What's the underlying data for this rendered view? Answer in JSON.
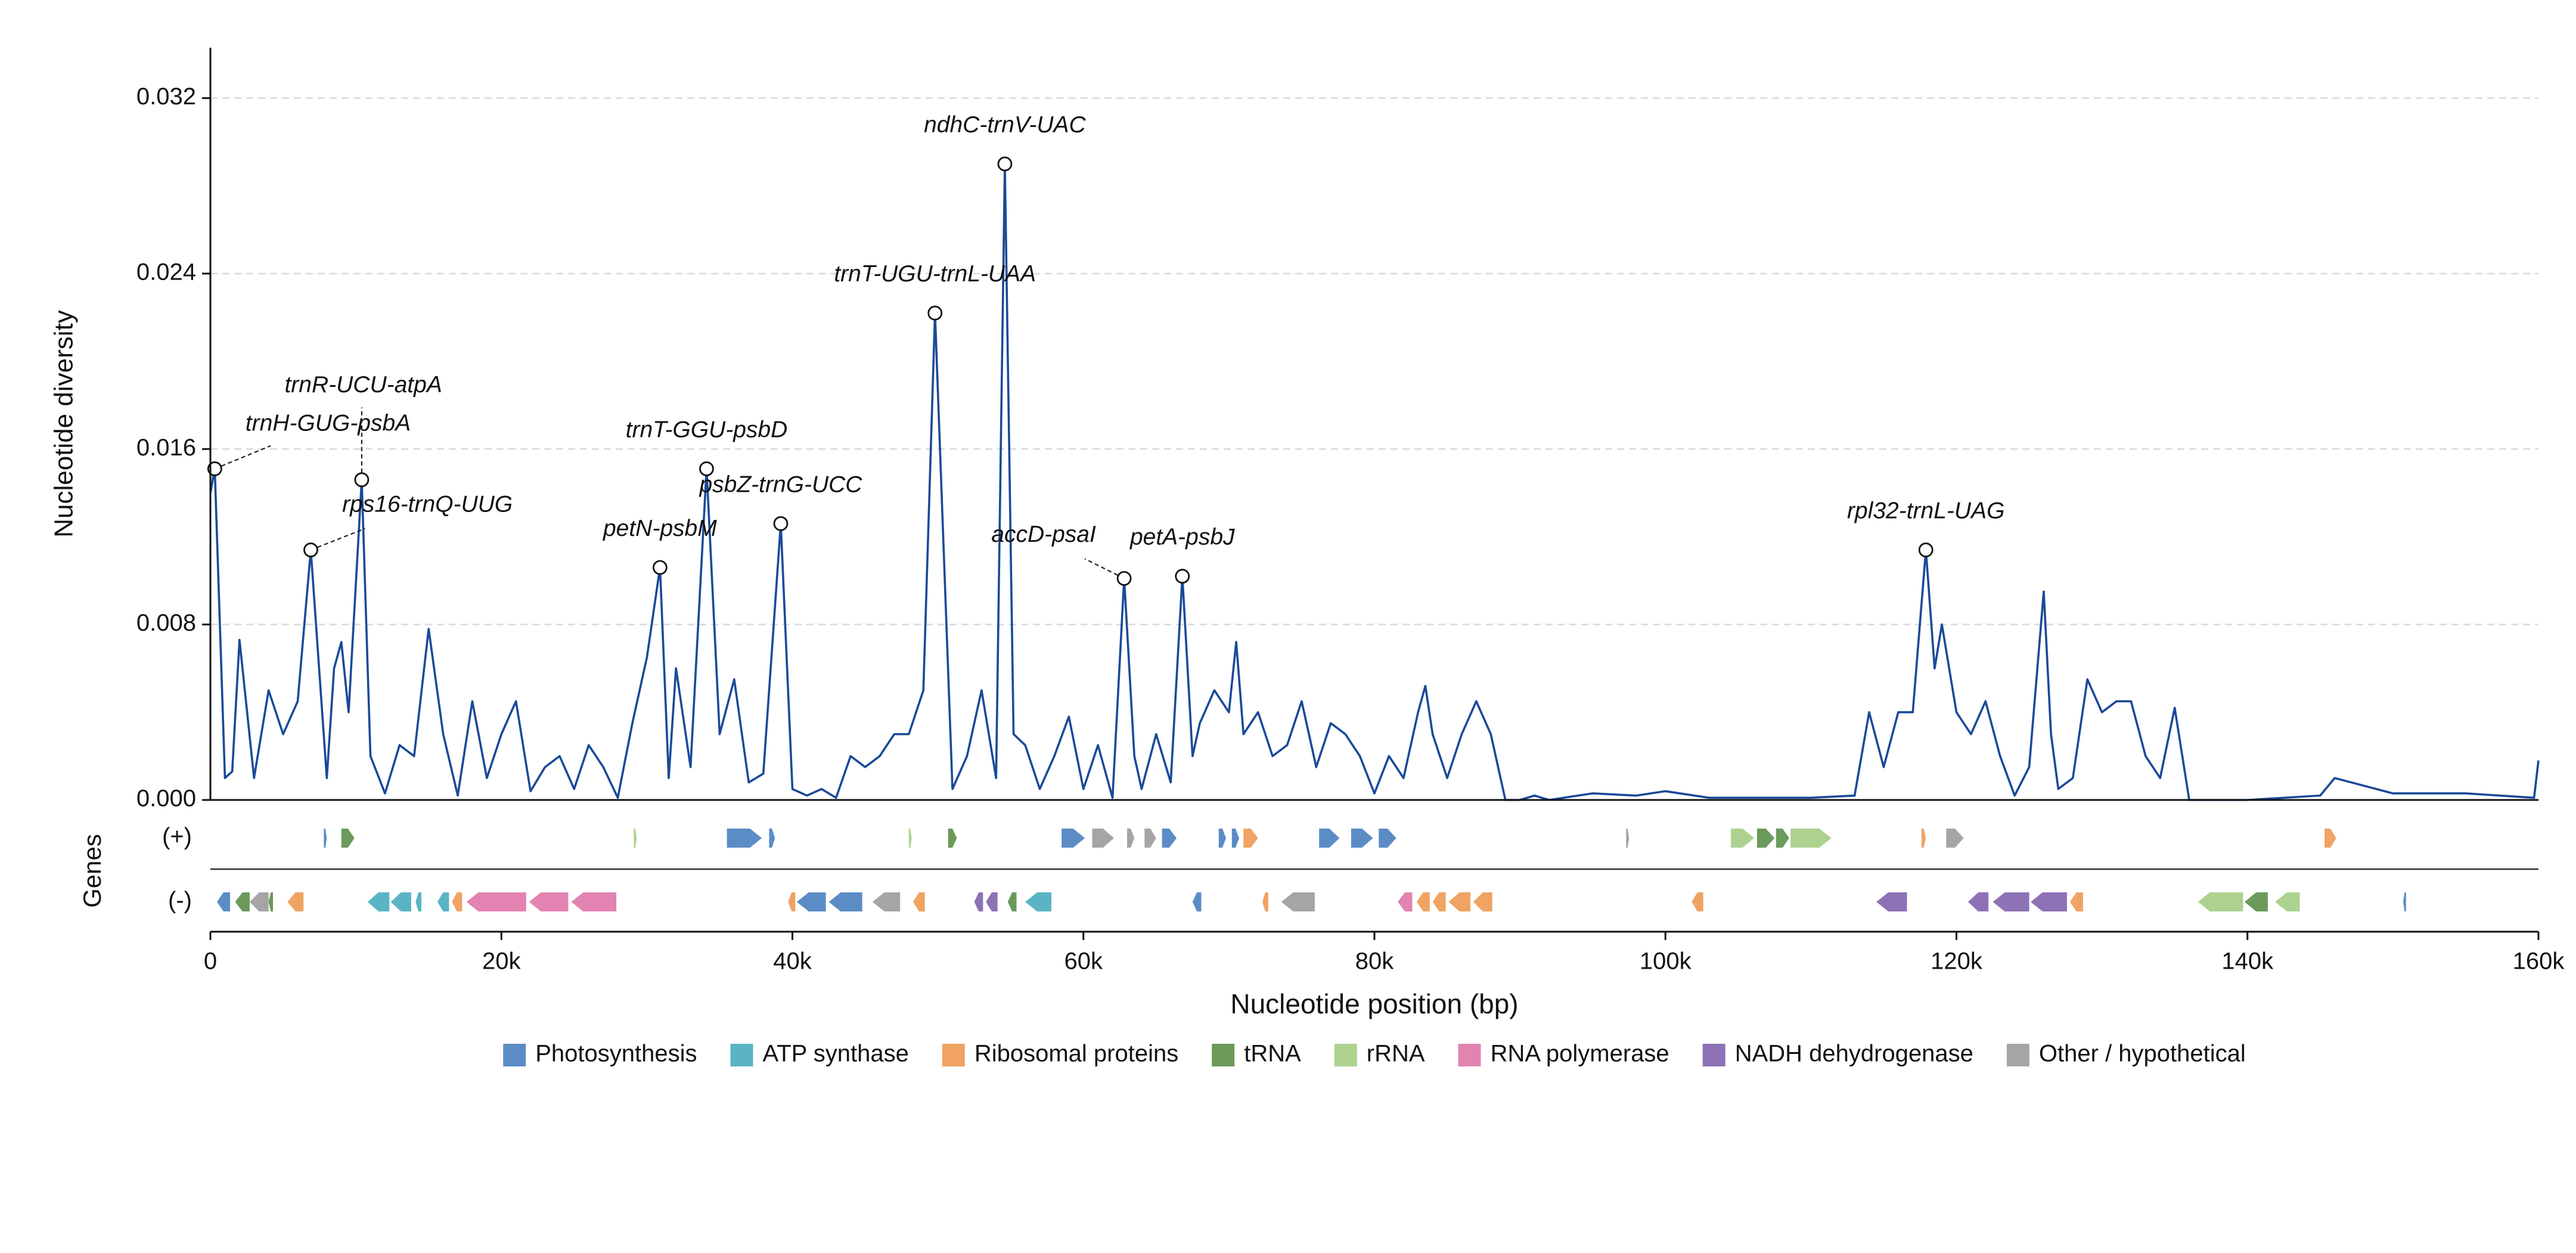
{
  "chart_data": {
    "type": "line",
    "ylabel": "Nucleotide diversity",
    "xlabel": "Nucleotide position (bp)",
    "track_label": "Genes",
    "color": "#1a4a99",
    "grid": true,
    "xlim": [
      0,
      160000
    ],
    "xticks": [
      0,
      {
        "value": 20000,
        "label": "20k"
      },
      {
        "value": 40000,
        "label": "40k"
      },
      {
        "value": 60000,
        "label": "60k"
      },
      {
        "value": 80000,
        "label": "80k"
      },
      {
        "value": 100000,
        "label": "100k"
      },
      {
        "value": 120000,
        "label": "120k"
      },
      {
        "value": 140000,
        "label": "140k"
      },
      {
        "value": 160000,
        "label": "160k"
      }
    ],
    "ylim": [
      0,
      0.0343
    ],
    "yticks": [
      {
        "value": 0,
        "label": "0.000"
      },
      {
        "value": 0.008,
        "label": "0.008"
      },
      {
        "value": 0.016,
        "label": "0.016"
      },
      {
        "value": 0.024,
        "label": "0.024"
      },
      {
        "value": 0.032,
        "label": "0.032"
      }
    ],
    "x": [
      0,
      300,
      1000,
      1500,
      2000,
      3000,
      4000,
      5000,
      6000,
      6900,
      8000,
      8500,
      9000,
      9500,
      10400,
      11000,
      12000,
      13000,
      14000,
      15000,
      16000,
      17000,
      18000,
      19000,
      20000,
      21000,
      22000,
      23000,
      24000,
      25000,
      26000,
      27000,
      28000,
      29000,
      30000,
      30900,
      31500,
      32000,
      33000,
      34100,
      35000,
      36000,
      37000,
      38000,
      39200,
      40000,
      41000,
      42000,
      43000,
      44000,
      45000,
      46000,
      47000,
      48000,
      49000,
      49800,
      51000,
      52000,
      53000,
      54000,
      54600,
      55200,
      56000,
      57000,
      58000,
      59000,
      60000,
      61000,
      62000,
      62800,
      63500,
      64000,
      65000,
      66000,
      66800,
      67500,
      68000,
      69000,
      70000,
      70500,
      71000,
      72000,
      73000,
      74000,
      75000,
      76000,
      77000,
      78000,
      79000,
      80000,
      81000,
      82000,
      83000,
      83500,
      84000,
      85000,
      86000,
      87000,
      88000,
      89000,
      90000,
      91000,
      92000,
      95000,
      98000,
      100000,
      103000,
      110000,
      113000,
      114000,
      115000,
      116000,
      117000,
      117900,
      118500,
      119000,
      120000,
      121000,
      122000,
      123000,
      124000,
      125000,
      126000,
      126500,
      127000,
      128000,
      129000,
      130000,
      131000,
      132000,
      133000,
      134000,
      135000,
      136000,
      140000,
      145000,
      146000,
      150000,
      155000,
      159700,
      160000
    ],
    "values": [
      0.014,
      0.0151,
      0.001,
      0.0013,
      0.0073,
      0.001,
      0.005,
      0.003,
      0.0045,
      0.0114,
      0.001,
      0.006,
      0.0072,
      0.004,
      0.0146,
      0.002,
      0.0003,
      0.0025,
      0.002,
      0.0078,
      0.003,
      0.0002,
      0.0045,
      0.001,
      0.003,
      0.0045,
      0.0004,
      0.0015,
      0.002,
      0.0005,
      0.0025,
      0.0015,
      0.0001,
      0.0035,
      0.0065,
      0.0106,
      0.001,
      0.006,
      0.0015,
      0.0151,
      0.003,
      0.0055,
      0.0008,
      0.0012,
      0.0126,
      0.0005,
      0.0002,
      0.0005,
      0.0001,
      0.002,
      0.0015,
      0.002,
      0.003,
      0.003,
      0.005,
      0.0222,
      0.0005,
      0.002,
      0.005,
      0.001,
      0.029,
      0.003,
      0.0025,
      0.0005,
      0.002,
      0.0038,
      0.0005,
      0.0025,
      0.0001,
      0.0101,
      0.002,
      0.0005,
      0.003,
      0.0008,
      0.0102,
      0.002,
      0.0035,
      0.005,
      0.004,
      0.0072,
      0.003,
      0.004,
      0.002,
      0.0025,
      0.0045,
      0.0015,
      0.0035,
      0.003,
      0.002,
      0.0003,
      0.002,
      0.001,
      0.004,
      0.0052,
      0.003,
      0.001,
      0.003,
      0.0045,
      0.003,
      0,
      0,
      0.0002,
      0,
      0.0003,
      0.0002,
      0.0004,
      0.0001,
      0.0001,
      0.0002,
      0.004,
      0.0015,
      0.004,
      0.004,
      0.0114,
      0.006,
      0.008,
      0.004,
      0.003,
      0.0045,
      0.002,
      0.0002,
      0.0015,
      0.0095,
      0.003,
      0.0005,
      0.001,
      0.0055,
      0.004,
      0.0045,
      0.0045,
      0.002,
      0.001,
      0.0042,
      0,
      0,
      0.0002,
      0.001,
      0.0003,
      0.0003,
      0.0001,
      0.0018
    ],
    "annotations": [
      {
        "text": "trnH-GUG-psbA",
        "x": 300,
        "y": 0.0151
      },
      {
        "text": "trnR-UCU-atpA",
        "x": 10400,
        "y": 0.0146
      },
      {
        "text": "rps16-trnQ-UUG",
        "x": 6900,
        "y": 0.0114
      },
      {
        "text": "petN-psbM",
        "x": 30900,
        "y": 0.0106
      },
      {
        "text": "trnT-GGU-psbD",
        "x": 34100,
        "y": 0.0151
      },
      {
        "text": "psbZ-trnG-UCC",
        "x": 39200,
        "y": 0.0126
      },
      {
        "text": "trnT-UGU-trnL-UAA",
        "x": 49800,
        "y": 0.0222
      },
      {
        "text": "ndhC-trnV-UAC",
        "x": 54600,
        "y": 0.029
      },
      {
        "text": "accD-psaI",
        "x": 62800,
        "y": 0.0101
      },
      {
        "text": "petA-psbJ",
        "x": 66800,
        "y": 0.0102
      },
      {
        "text": "rpl32-trnL-UAG",
        "x": 117900,
        "y": 0.0114
      }
    ],
    "gene_categories": [
      {
        "name": "Photosynthesis",
        "color": "#5b8cc6"
      },
      {
        "name": "ATP synthase",
        "color": "#5ab4c4"
      },
      {
        "name": "Ribosomal proteins",
        "color": "#f0a363"
      },
      {
        "name": "tRNA",
        "color": "#6b9a5a"
      },
      {
        "name": "rRNA",
        "color": "#add290"
      },
      {
        "name": "RNA polymerase",
        "color": "#e283b2"
      },
      {
        "name": "NADH dehydrogenase",
        "color": "#8d72b6"
      },
      {
        "name": "Other / hypothetical",
        "color": "#a5a5a5"
      }
    ],
    "tracks": [
      {
        "name": "(+)",
        "genes": [
          {
            "start": 7800,
            "end": 8000,
            "category": 0
          },
          {
            "start": 9000,
            "end": 9900,
            "category": 3
          },
          {
            "start": 29100,
            "end": 29300,
            "category": 4
          },
          {
            "start": 35500,
            "end": 37900,
            "category": 0
          },
          {
            "start": 38400,
            "end": 38800,
            "category": 0
          },
          {
            "start": 48000,
            "end": 48200,
            "category": 4
          },
          {
            "start": 50700,
            "end": 51300,
            "category": 3
          },
          {
            "start": 58500,
            "end": 60100,
            "category": 0
          },
          {
            "start": 60600,
            "end": 62100,
            "category": 7
          },
          {
            "start": 63000,
            "end": 63500,
            "category": 7
          },
          {
            "start": 64200,
            "end": 65000,
            "category": 7
          },
          {
            "start": 65400,
            "end": 66400,
            "category": 0
          },
          {
            "start": 69300,
            "end": 69800,
            "category": 0
          },
          {
            "start": 70200,
            "end": 70700,
            "category": 0
          },
          {
            "start": 71000,
            "end": 72000,
            "category": 2
          },
          {
            "start": 76200,
            "end": 77600,
            "category": 0
          },
          {
            "start": 78400,
            "end": 79900,
            "category": 0
          },
          {
            "start": 80300,
            "end": 81500,
            "category": 0
          },
          {
            "start": 97300,
            "end": 97500,
            "category": 7
          },
          {
            "start": 104500,
            "end": 106100,
            "category": 4
          },
          {
            "start": 106300,
            "end": 107500,
            "category": 3
          },
          {
            "start": 107600,
            "end": 108500,
            "category": 3
          },
          {
            "start": 108600,
            "end": 111400,
            "category": 4
          },
          {
            "start": 117600,
            "end": 117900,
            "category": 2
          },
          {
            "start": 119300,
            "end": 120500,
            "category": 7
          },
          {
            "start": 145300,
            "end": 146100,
            "category": 2
          }
        ]
      },
      {
        "name": "(-)",
        "genes": [
          {
            "start": 450,
            "end": 1350,
            "category": 0
          },
          {
            "start": 1700,
            "end": 2700,
            "category": 3
          },
          {
            "start": 2700,
            "end": 4000,
            "category": 7
          },
          {
            "start": 4000,
            "end": 4300,
            "category": 3
          },
          {
            "start": 5300,
            "end": 6400,
            "category": 2
          },
          {
            "start": 10800,
            "end": 12300,
            "category": 1
          },
          {
            "start": 12400,
            "end": 13800,
            "category": 1
          },
          {
            "start": 14100,
            "end": 14500,
            "category": 1
          },
          {
            "start": 15600,
            "end": 16400,
            "category": 1
          },
          {
            "start": 16600,
            "end": 17300,
            "category": 2
          },
          {
            "start": 17600,
            "end": 21700,
            "category": 5
          },
          {
            "start": 21900,
            "end": 24600,
            "category": 5
          },
          {
            "start": 24800,
            "end": 27900,
            "category": 5
          },
          {
            "start": 39700,
            "end": 40200,
            "category": 2
          },
          {
            "start": 40300,
            "end": 42300,
            "category": 0
          },
          {
            "start": 42500,
            "end": 44800,
            "category": 0
          },
          {
            "start": 45500,
            "end": 47400,
            "category": 7
          },
          {
            "start": 48300,
            "end": 49100,
            "category": 2
          },
          {
            "start": 52500,
            "end": 53100,
            "category": 6
          },
          {
            "start": 53300,
            "end": 54100,
            "category": 6
          },
          {
            "start": 54800,
            "end": 55400,
            "category": 3
          },
          {
            "start": 56000,
            "end": 57800,
            "category": 1
          },
          {
            "start": 67500,
            "end": 68100,
            "category": 0
          },
          {
            "start": 72300,
            "end": 72700,
            "category": 2
          },
          {
            "start": 73600,
            "end": 75900,
            "category": 7
          },
          {
            "start": 81600,
            "end": 82600,
            "category": 5
          },
          {
            "start": 82900,
            "end": 83800,
            "category": 2
          },
          {
            "start": 84000,
            "end": 84900,
            "category": 2
          },
          {
            "start": 85100,
            "end": 86600,
            "category": 2
          },
          {
            "start": 86800,
            "end": 88100,
            "category": 2
          },
          {
            "start": 101800,
            "end": 102600,
            "category": 2
          },
          {
            "start": 114500,
            "end": 116600,
            "category": 6
          },
          {
            "start": 120800,
            "end": 122200,
            "category": 6
          },
          {
            "start": 122500,
            "end": 125000,
            "category": 6
          },
          {
            "start": 125100,
            "end": 127600,
            "category": 6
          },
          {
            "start": 127800,
            "end": 128700,
            "category": 2
          },
          {
            "start": 136600,
            "end": 139700,
            "category": 4
          },
          {
            "start": 139800,
            "end": 141400,
            "category": 3
          },
          {
            "start": 141900,
            "end": 143600,
            "category": 4
          },
          {
            "start": 150700,
            "end": 150900,
            "category": 0
          }
        ]
      }
    ]
  }
}
